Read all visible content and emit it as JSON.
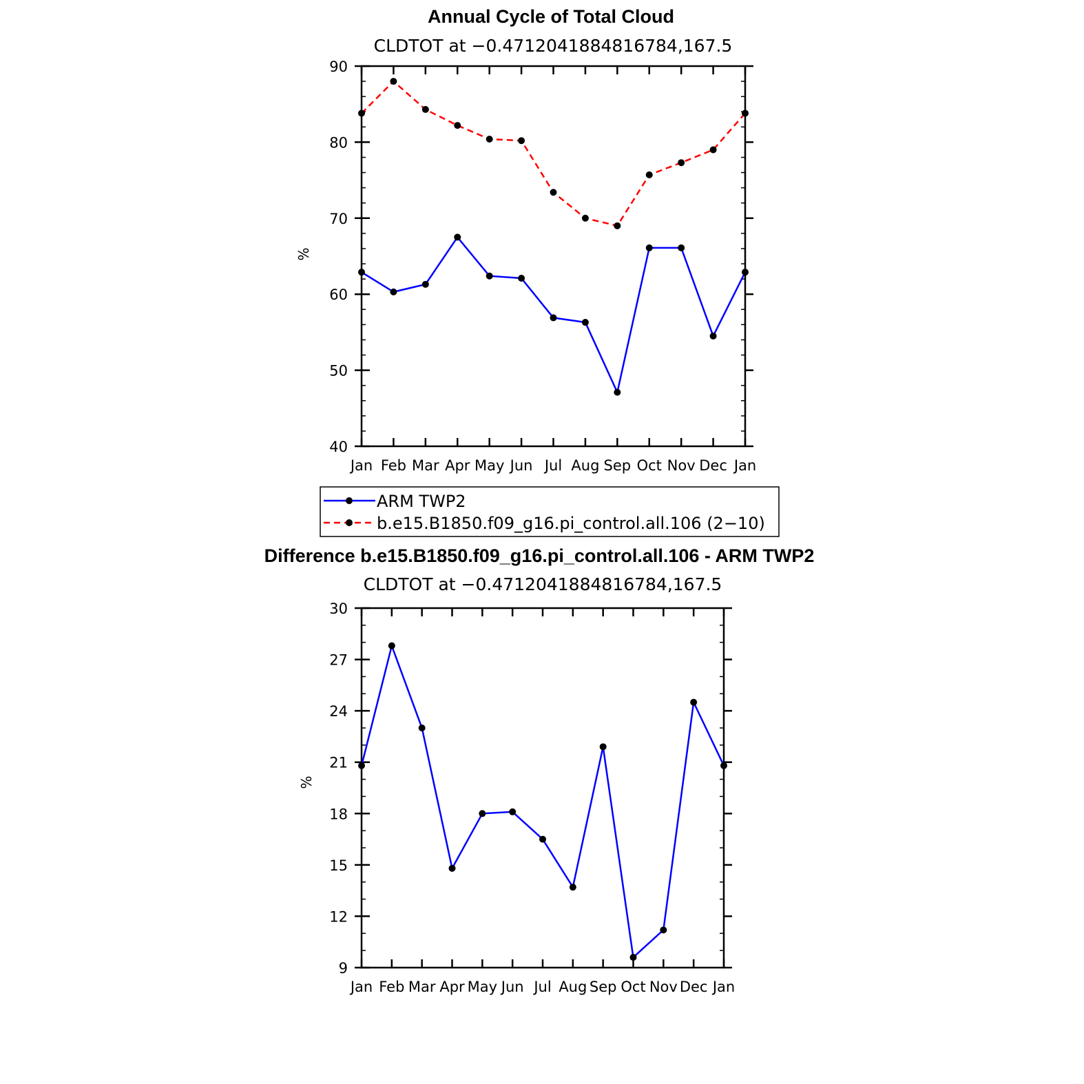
{
  "chart_data": [
    {
      "type": "line",
      "title": "Annual Cycle of Total Cloud",
      "subtitle": "CLDTOT at −0.4712041884816784,167.5",
      "xlabel": "",
      "ylabel": "%",
      "ylim": [
        40,
        90
      ],
      "yticks": [
        40,
        50,
        60,
        70,
        80,
        90
      ],
      "categories": [
        "Jan",
        "Feb",
        "Mar",
        "Apr",
        "May",
        "Jun",
        "Jul",
        "Aug",
        "Sep",
        "Oct",
        "Nov",
        "Dec",
        "Jan"
      ],
      "grid": false,
      "series": [
        {
          "name": "ARM TWP2",
          "color": "#0000ff",
          "dash": "solid",
          "values": [
            62.9,
            60.3,
            61.3,
            67.5,
            62.4,
            62.1,
            56.9,
            56.3,
            47.1,
            66.1,
            66.1,
            54.5,
            62.9
          ]
        },
        {
          "name": "b.e15.B1850.f09_g16.pi_control.all.106 (2−10)",
          "color": "#ff0000",
          "dash": "dashed",
          "values": [
            83.8,
            88.0,
            84.3,
            82.2,
            80.4,
            80.2,
            73.4,
            70.0,
            69.0,
            75.7,
            77.3,
            79.0,
            83.8
          ]
        }
      ],
      "legend": "below"
    },
    {
      "type": "line",
      "title": "Difference b.e15.B1850.f09_g16.pi_control.all.106 - ARM TWP2",
      "subtitle": "CLDTOT at −0.4712041884816784,167.5",
      "xlabel": "",
      "ylabel": "%",
      "ylim": [
        9,
        30
      ],
      "yticks": [
        9,
        12,
        15,
        18,
        21,
        24,
        27,
        30
      ],
      "categories": [
        "Jan",
        "Feb",
        "Mar",
        "Apr",
        "May",
        "Jun",
        "Jul",
        "Aug",
        "Sep",
        "Oct",
        "Nov",
        "Dec",
        "Jan"
      ],
      "grid": false,
      "series": [
        {
          "name": "Difference",
          "color": "#0000ff",
          "dash": "solid",
          "values": [
            20.8,
            27.8,
            23.0,
            14.8,
            18.0,
            18.1,
            16.5,
            13.7,
            21.9,
            9.6,
            11.2,
            24.5,
            20.8
          ]
        }
      ]
    }
  ]
}
